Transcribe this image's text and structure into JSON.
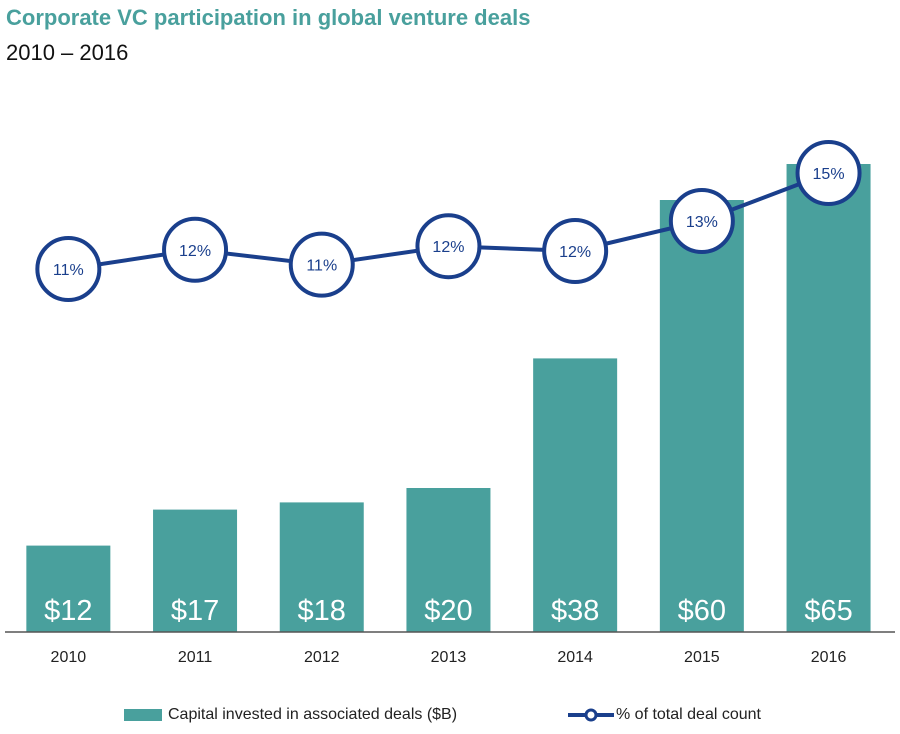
{
  "chart_data": {
    "type": "bar+line",
    "title": "Corporate VC participation in global venture deals",
    "subtitle": "2010 – 2016",
    "categories": [
      "2010",
      "2011",
      "2012",
      "2013",
      "2014",
      "2015",
      "2016"
    ],
    "series": [
      {
        "name": "Capital invested in associated deals ($B)",
        "type": "bar",
        "values": [
          12,
          17,
          18,
          20,
          38,
          60,
          65
        ],
        "labels": [
          "$12",
          "$17",
          "$18",
          "$20",
          "$38",
          "$60",
          "$65"
        ],
        "color": "#49a09d"
      },
      {
        "name": "% of total deal count",
        "type": "line",
        "values": [
          11,
          12,
          11,
          12,
          12,
          13,
          15
        ],
        "labels": [
          "11%",
          "12%",
          "11%",
          "12%",
          "12%",
          "13%",
          "15%"
        ],
        "color": "#1a3f8c"
      }
    ],
    "legend_position": "bottom"
  }
}
